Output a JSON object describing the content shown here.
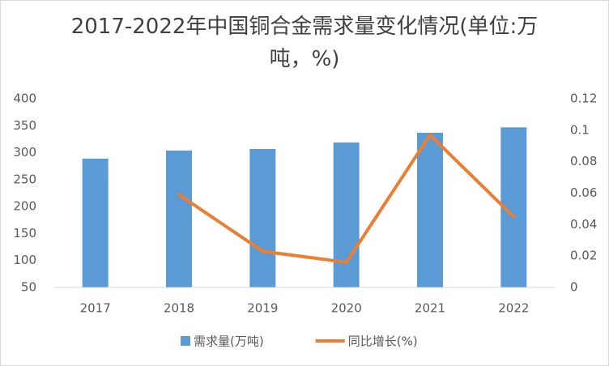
{
  "chart_data": {
    "type": "bar-line",
    "title": "2017-2022年中国铜合金需求量变化情况(单位:万吨，%)",
    "categories": [
      "2017",
      "2018",
      "2019",
      "2020",
      "2021",
      "2022"
    ],
    "series": [
      {
        "name": "需求量(万吨)",
        "type": "bar",
        "color": "#5b9bd5",
        "values": [
          289,
          304,
          307,
          319,
          337,
          347
        ]
      },
      {
        "name": "同比增长(%)",
        "type": "line",
        "axis": "y2",
        "color": "#ed7d31",
        "values": [
          null,
          0.059,
          0.023,
          0.016,
          0.097,
          0.045
        ]
      }
    ],
    "ylim": [
      50,
      400
    ],
    "yticks": [
      50,
      100,
      150,
      200,
      250,
      300,
      350,
      400
    ],
    "y2lim": [
      0,
      0.12
    ],
    "y2ticks": [
      0,
      0.02,
      0.04,
      0.06,
      0.08,
      0.1,
      0.12
    ],
    "legend": "bottom",
    "grid": false
  }
}
